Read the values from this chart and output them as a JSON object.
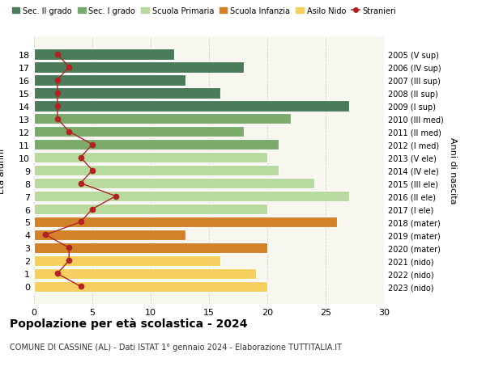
{
  "ages": [
    18,
    17,
    16,
    15,
    14,
    13,
    12,
    11,
    10,
    9,
    8,
    7,
    6,
    5,
    4,
    3,
    2,
    1,
    0
  ],
  "right_labels": [
    "2005 (V sup)",
    "2006 (IV sup)",
    "2007 (III sup)",
    "2008 (II sup)",
    "2009 (I sup)",
    "2010 (III med)",
    "2011 (II med)",
    "2012 (I med)",
    "2013 (V ele)",
    "2014 (IV ele)",
    "2015 (III ele)",
    "2016 (II ele)",
    "2017 (I ele)",
    "2018 (mater)",
    "2019 (mater)",
    "2020 (mater)",
    "2021 (nido)",
    "2022 (nido)",
    "2023 (nido)"
  ],
  "bar_values": [
    12,
    18,
    13,
    16,
    27,
    22,
    18,
    21,
    20,
    21,
    24,
    27,
    20,
    26,
    13,
    20,
    16,
    19,
    20
  ],
  "bar_colors": [
    "#4a7c59",
    "#4a7c59",
    "#4a7c59",
    "#4a7c59",
    "#4a7c59",
    "#7aaa6c",
    "#7aaa6c",
    "#7aaa6c",
    "#b8d9a0",
    "#b8d9a0",
    "#b8d9a0",
    "#b8d9a0",
    "#b8d9a0",
    "#d4822a",
    "#d4822a",
    "#d4822a",
    "#f5d060",
    "#f5d060",
    "#f5d060"
  ],
  "stranieri_values": [
    2,
    3,
    2,
    2,
    2,
    2,
    3,
    5,
    4,
    5,
    4,
    7,
    5,
    4,
    1,
    3,
    3,
    2,
    4
  ],
  "stranieri_color": "#b22222",
  "title": "Popolazione per età scolastica - 2024",
  "subtitle": "COMUNE DI CASSINE (AL) - Dati ISTAT 1° gennaio 2024 - Elaborazione TUTTITALIA.IT",
  "ylabel_left": "Età alunni",
  "ylabel_right": "Anni di nascita",
  "xlim": [
    0,
    30
  ],
  "xticks": [
    0,
    5,
    10,
    15,
    20,
    25,
    30
  ],
  "legend_labels": [
    "Sec. II grado",
    "Sec. I grado",
    "Scuola Primaria",
    "Scuola Infanzia",
    "Asilo Nido",
    "Stranieri"
  ],
  "legend_colors": [
    "#4a7c59",
    "#7aaa6c",
    "#b8d9a0",
    "#d4822a",
    "#f5d060",
    "#b22222"
  ],
  "plot_bg_color": "#f7f7ef",
  "fig_bg_color": "#ffffff"
}
